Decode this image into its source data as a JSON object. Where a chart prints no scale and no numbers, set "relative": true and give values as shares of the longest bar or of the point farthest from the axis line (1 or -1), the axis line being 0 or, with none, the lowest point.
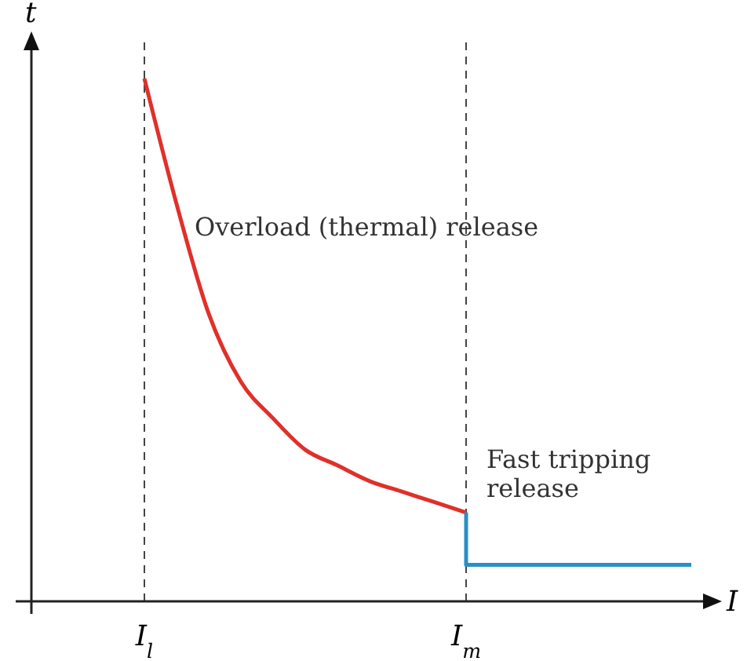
{
  "chart_data": {
    "type": "line",
    "relative": true,
    "xlabel": "I",
    "ylabel": "t",
    "categories": [
      null,
      null,
      null,
      "I$_{l}$",
      null,
      null,
      null,
      null,
      null,
      null,
      null,
      null,
      null,
      "I$_{m}$",
      null,
      null,
      null,
      null,
      null,
      null,
      null
    ],
    "series": [
      {
        "color": "#e0302a",
        "values": [
          null,
          null,
          null,
          1.0,
          0.76,
          0.55,
          0.42,
          0.35,
          0.29,
          0.26,
          0.23,
          0.21,
          0.19,
          0.17,
          null,
          null,
          null,
          null,
          null,
          null,
          null
        ]
      },
      {
        "type": "step",
        "color": "#2a8fc7",
        "values": [
          null,
          null,
          null,
          null,
          null,
          null,
          null,
          null,
          null,
          null,
          null,
          null,
          null,
          0.17,
          0.07,
          0.07,
          0.07,
          0.07,
          0.07,
          0.07,
          0.07
        ]
      }
    ],
    "ref_lines": [
      {
        "axis": "x",
        "value": "I$_{l}$",
        "line_style": "dashed",
        "color": "#444444"
      },
      {
        "axis": "x",
        "value": "I$_{m}$",
        "line_style": "dashed",
        "color": "#444444"
      }
    ],
    "annotations": [
      "Overload (thermal) release",
      "Fast tripping release"
    ],
    "grid": false,
    "marker": "none",
    "line_style": "solid"
  }
}
